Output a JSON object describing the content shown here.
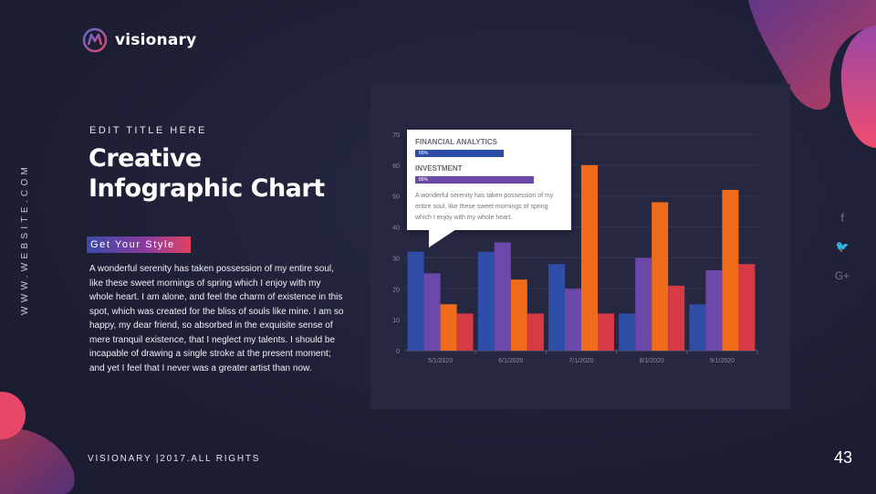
{
  "brand": {
    "name": "visionary"
  },
  "sidebar": {
    "website": "WWW.WEBSITE.COM"
  },
  "header": {
    "kicker": "EDIT TITLE HERE",
    "title_line1": "Creative",
    "title_line2": "Infographic Chart"
  },
  "tag": {
    "label": "Get Your Style"
  },
  "body": {
    "paragraph": "A wonderful serenity has taken possession of my entire soul, like these sweet mornings of spring which I enjoy with my whole heart. I am alone, and feel the charm of existence in this spot, which was created for the bliss of souls like mine. I am so happy, my dear friend, so absorbed in the exquisite sense of mere tranquil existence, that I neglect my talents. I should be incapable of drawing a single stroke at the present moment; and yet I feel that I never was a greater artist than now."
  },
  "footer": {
    "text": "VISIONARY |2017.ALL RIGHTS",
    "page_number": "43"
  },
  "social": {
    "icons": [
      "facebook-icon",
      "twitter-icon",
      "google-plus-icon"
    ],
    "glyphs": [
      "f",
      "🐦",
      "G+"
    ]
  },
  "tooltip": {
    "heading1": "FINANCIAL ANALYTICS",
    "bar1_label": "60%",
    "bar1_value": 0.6,
    "heading2": "INVESTMENT",
    "bar2_label": "80%",
    "bar2_value": 0.8,
    "description": "A wonderful serenity has taken possession of my entire soul, like these sweet mornings of spring which I enjoy with my whole heart."
  },
  "colors": {
    "blue": "#2f4ea8",
    "purple": "#6c48a8",
    "orange": "#f06c1a",
    "red": "#d63a45",
    "accent_pink": "#e8476a"
  },
  "chart_data": {
    "type": "bar",
    "categories": [
      "5/1/2020",
      "6/1/2020",
      "7/1/2020",
      "8/1/2020",
      "9/1/2020"
    ],
    "series": [
      {
        "values": [
          32,
          32,
          28,
          12,
          15
        ],
        "color": "#2f4ea8"
      },
      {
        "values": [
          25,
          35,
          20,
          30,
          26
        ],
        "color": "#6c48a8"
      },
      {
        "values": [
          15,
          23,
          60,
          48,
          52
        ],
        "color": "#f06c1a"
      },
      {
        "values": [
          12,
          12,
          12,
          21,
          28
        ],
        "color": "#d63a45"
      }
    ],
    "ylim": [
      0,
      70
    ],
    "yticks": [
      "0",
      "10",
      "20",
      "30",
      "40",
      "50",
      "60",
      "70"
    ],
    "grid": true,
    "legend": "none"
  }
}
